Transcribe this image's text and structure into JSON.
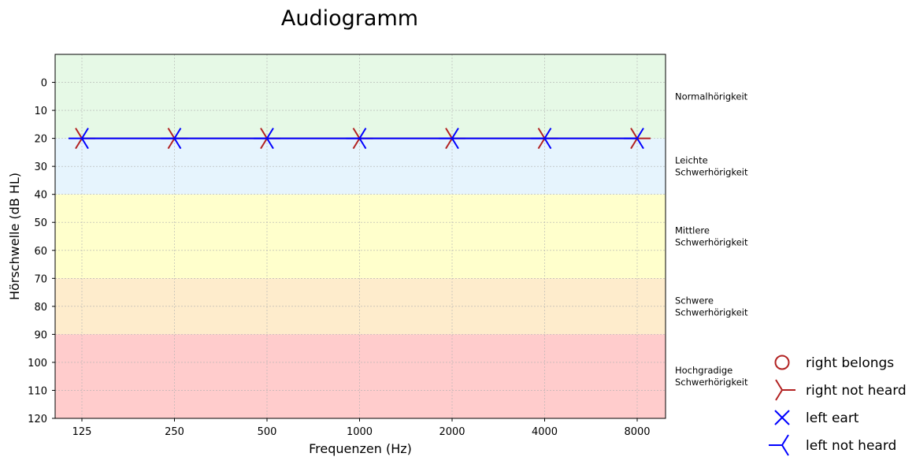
{
  "chart_data": {
    "type": "line",
    "title": "Audiogramm",
    "xlabel": "Frequenzen (Hz)",
    "ylabel": "Hörschwelle (dB HL)",
    "categories": [
      "125",
      "250",
      "500",
      "1000",
      "2000",
      "4000",
      "8000"
    ],
    "yticks": [
      "0",
      "10",
      "20",
      "30",
      "40",
      "50",
      "60",
      "70",
      "80",
      "90",
      "100",
      "110",
      "120"
    ],
    "ylim": [
      -10,
      120
    ],
    "y_inverted": true,
    "grid": true,
    "zones": [
      {
        "from": -10,
        "to": 20,
        "color": "#e6f9e6",
        "label": [
          "Normalhörigkeit"
        ]
      },
      {
        "from": 20,
        "to": 40,
        "color": "#e6f4fd",
        "label": [
          "Leichte",
          "Schwerhörigkeit"
        ]
      },
      {
        "from": 40,
        "to": 70,
        "color": "#ffffcc",
        "label": [
          "Mittlere",
          "Schwerhörigkeit"
        ]
      },
      {
        "from": 70,
        "to": 90,
        "color": "#feeccc",
        "label": [
          "Schwere",
          "Schwerhörigkeit"
        ]
      },
      {
        "from": 90,
        "to": 120,
        "color": "#ffcccc",
        "label": [
          "Hochgradige",
          "Schwerhörigkeit"
        ]
      }
    ],
    "series": [
      {
        "marker": "right-not-heard",
        "color": "#b22222",
        "values": [
          20,
          20,
          20,
          20,
          20,
          20,
          20
        ]
      },
      {
        "marker": "left-not-heard",
        "color": "#0000ff",
        "values": [
          20,
          20,
          20,
          20,
          20,
          20,
          20
        ]
      }
    ],
    "legend": {
      "placement": "right-bottom",
      "entries": [
        {
          "label": "right belongs",
          "marker": "circle",
          "color": "#b22222"
        },
        {
          "label": "right not heard",
          "marker": "right-not-heard",
          "color": "#b22222"
        },
        {
          "label": "left eart",
          "marker": "x",
          "color": "#0000ff"
        },
        {
          "label": "left not heard",
          "marker": "left-not-heard",
          "color": "#0000ff"
        }
      ]
    }
  }
}
